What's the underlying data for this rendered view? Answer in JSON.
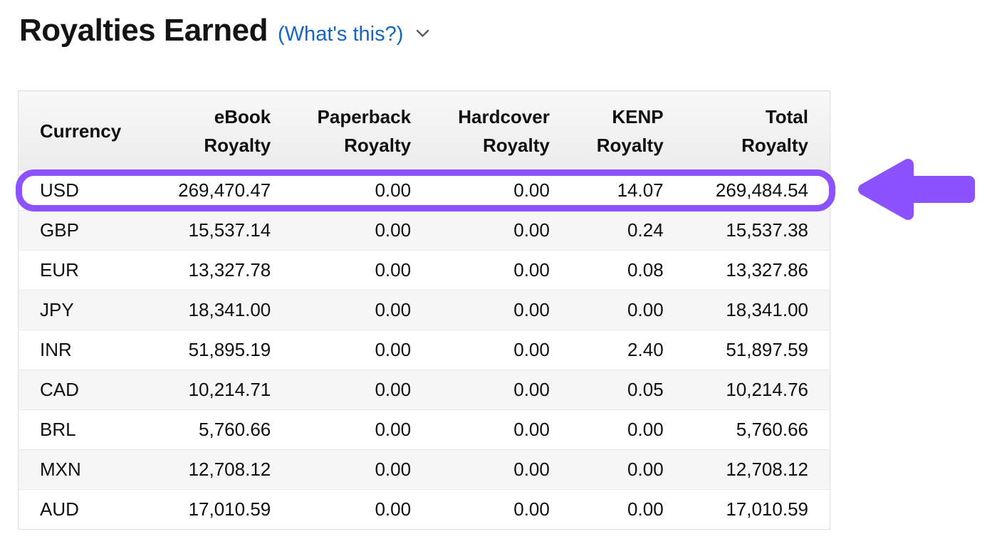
{
  "header": {
    "title": "Royalties Earned",
    "whats_this_label": "(What's this?)"
  },
  "table": {
    "columns": [
      {
        "id": "currency",
        "line1": "Currency",
        "line2": ""
      },
      {
        "id": "ebook",
        "line1": "eBook",
        "line2": "Royalty"
      },
      {
        "id": "paperback",
        "line1": "Paperback",
        "line2": "Royalty"
      },
      {
        "id": "hardcover",
        "line1": "Hardcover",
        "line2": "Royalty"
      },
      {
        "id": "kenp",
        "line1": "KENP",
        "line2": "Royalty"
      },
      {
        "id": "total",
        "line1": "Total",
        "line2": "Royalty"
      }
    ],
    "rows": [
      [
        "USD",
        "269,470.47",
        "0.00",
        "0.00",
        "14.07",
        "269,484.54"
      ],
      [
        "GBP",
        "15,537.14",
        "0.00",
        "0.00",
        "0.24",
        "15,537.38"
      ],
      [
        "EUR",
        "13,327.78",
        "0.00",
        "0.00",
        "0.08",
        "13,327.86"
      ],
      [
        "JPY",
        "18,341.00",
        "0.00",
        "0.00",
        "0.00",
        "18,341.00"
      ],
      [
        "INR",
        "51,895.19",
        "0.00",
        "0.00",
        "2.40",
        "51,897.59"
      ],
      [
        "CAD",
        "10,214.71",
        "0.00",
        "0.00",
        "0.05",
        "10,214.76"
      ],
      [
        "BRL",
        "5,760.66",
        "0.00",
        "0.00",
        "0.00",
        "5,760.66"
      ],
      [
        "MXN",
        "12,708.12",
        "0.00",
        "0.00",
        "0.00",
        "12,708.12"
      ],
      [
        "AUD",
        "17,010.59",
        "0.00",
        "0.00",
        "0.00",
        "17,010.59"
      ]
    ],
    "highlighted_currency": "USD"
  },
  "annotations": {
    "highlight_color": "#8c52ff",
    "arrow_direction": "left"
  },
  "colors": {
    "link_blue": "#1666c0",
    "annotation_purple": "#8c52ff"
  }
}
